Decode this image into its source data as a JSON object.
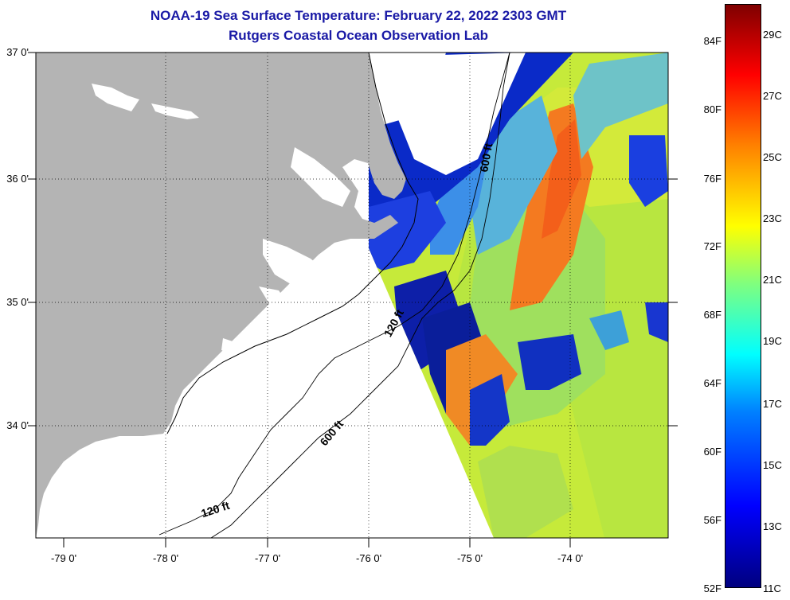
{
  "title": "NOAA-19 Sea Surface Temperature:  February 22, 2022 2303 GMT",
  "subtitle": "Rutgers Coastal Ocean Observation Lab",
  "lat_labels": [
    "37 0'",
    "36 0'",
    "35 0'",
    "34 0'"
  ],
  "lon_labels": [
    "-79 0'",
    "-78 0'",
    "-77 0'",
    "-76 0'",
    "-75 0'",
    "-74 0'"
  ],
  "colorbar": {
    "fahrenheit": [
      "84F",
      "80F",
      "76F",
      "72F",
      "68F",
      "64F",
      "60F",
      "56F",
      "52F"
    ],
    "celsius": [
      "29C",
      "27C",
      "25C",
      "23C",
      "21C",
      "19C",
      "17C",
      "15C",
      "13C",
      "11C"
    ]
  },
  "isobaths": {
    "depth_600": "600 ft",
    "depth_120": "120 ft"
  },
  "colors": {
    "land": "#b4b4b4",
    "title": "#1a1aa6",
    "cloud": "#ffffff"
  }
}
